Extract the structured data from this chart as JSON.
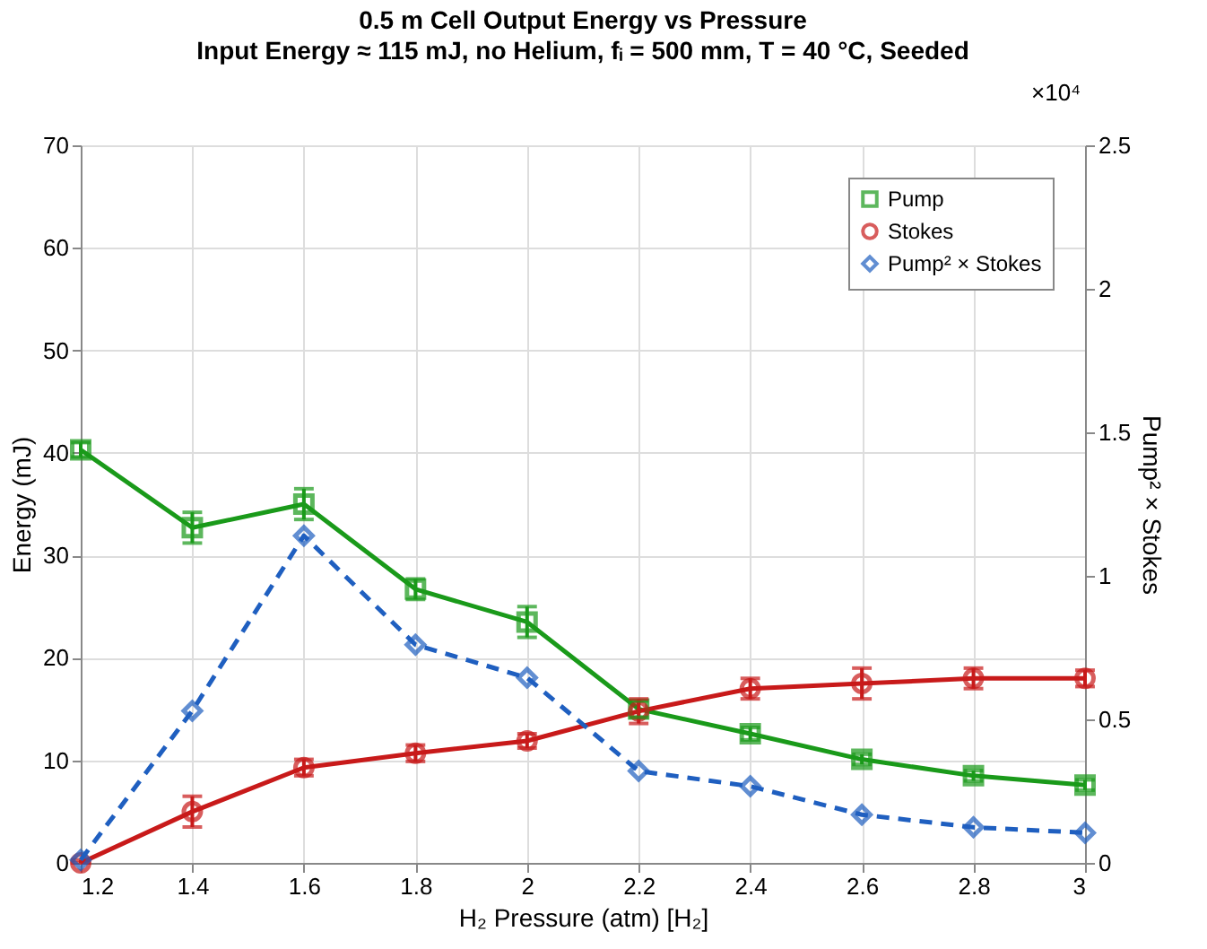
{
  "chart_data": {
    "type": "line",
    "title": "0.5 m Cell Output Energy vs Pressure",
    "subtitle": "Input Energy ≈ 115 mJ, no Helium, fᵢ = 500 mm, T = 40 °C, Seeded",
    "xlabel": "H₂ Pressure (atm) [H₂]",
    "ylabel": "Energy (mJ)",
    "y2label": "Pump² × Stokes",
    "x": [
      1.2,
      1.4,
      1.6,
      1.8,
      2.0,
      2.2,
      2.4,
      2.6,
      2.8,
      3.0
    ],
    "series": [
      {
        "name": "Pump",
        "color": "#1a9a1a",
        "marker": "square",
        "line_style": "solid",
        "values": [
          40.3,
          32.7,
          35,
          26.7,
          23.5,
          15,
          12.6,
          10.1,
          8.5,
          7.6
        ],
        "errors": [
          0.7,
          1.5,
          1.5,
          1,
          1.5,
          0.8,
          0.6,
          0.5,
          0.5,
          0.5
        ]
      },
      {
        "name": "Stokes",
        "color": "#c81a1a",
        "marker": "circle",
        "line_style": "solid",
        "values": [
          0,
          5,
          9.3,
          10.7,
          11.9,
          14.8,
          17,
          17.5,
          18,
          18
        ],
        "errors": [
          [
            0,
            0.3
          ],
          1.5,
          0.8,
          0.8,
          0.7,
          1.2,
          1,
          1.5,
          1,
          0.8
        ]
      },
      {
        "name": "Pump² × Stokes",
        "color": "#1f5fc0",
        "marker": "diamond",
        "line_style": "dashed",
        "axis": "y2",
        "values": [
          0.01,
          0.53,
          1.14,
          0.76,
          0.645,
          0.32,
          0.267,
          0.168,
          0.124,
          0.105
        ]
      }
    ],
    "xlim": [
      1.2,
      3.0
    ],
    "xticks": [
      1.2,
      1.4,
      1.6,
      1.8,
      2,
      2.2,
      2.4,
      2.6,
      2.8,
      3
    ],
    "ylim": [
      0,
      70
    ],
    "yticks": [
      0,
      10,
      20,
      30,
      40,
      50,
      60,
      70
    ],
    "y2lim": [
      0,
      2.5
    ],
    "y2ticks": [
      0,
      0.5,
      1,
      1.5,
      2,
      2.5
    ],
    "annotations": [
      "×10⁴"
    ],
    "grid": true,
    "legend": "top right"
  }
}
